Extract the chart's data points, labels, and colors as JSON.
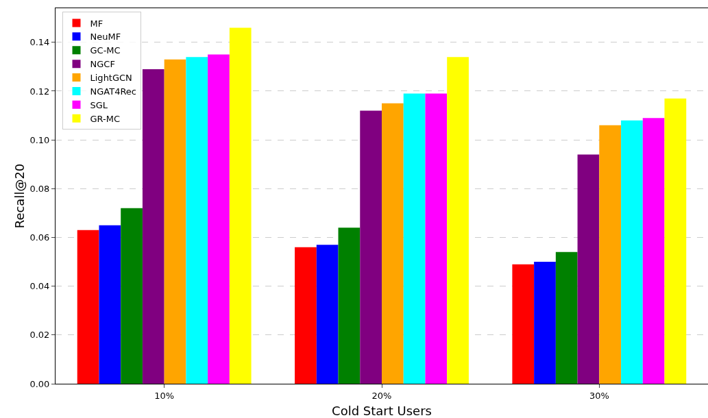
{
  "chart_data": {
    "type": "bar",
    "xlabel": "Cold Start Users",
    "ylabel": "Recall@20",
    "categories": [
      "10%",
      "20%",
      "30%"
    ],
    "series": [
      {
        "name": "MF",
        "color": "#ff0000",
        "values": [
          0.063,
          0.056,
          0.049
        ]
      },
      {
        "name": "NeuMF",
        "color": "#0000ff",
        "values": [
          0.065,
          0.057,
          0.05
        ]
      },
      {
        "name": "GC-MC",
        "color": "#008000",
        "values": [
          0.072,
          0.064,
          0.054
        ]
      },
      {
        "name": "NGCF",
        "color": "#800080",
        "values": [
          0.129,
          0.112,
          0.094
        ]
      },
      {
        "name": "LightGCN",
        "color": "#ffa500",
        "values": [
          0.133,
          0.115,
          0.106
        ]
      },
      {
        "name": "NGAT4Rec",
        "color": "#00ffff",
        "values": [
          0.134,
          0.119,
          0.108
        ]
      },
      {
        "name": "SGL",
        "color": "#ff00ff",
        "values": [
          0.135,
          0.119,
          0.109
        ]
      },
      {
        "name": "GR-MC",
        "color": "#ffff00",
        "values": [
          0.146,
          0.134,
          0.117
        ]
      }
    ],
    "ylim": [
      0,
      0.154
    ],
    "yticks": [
      {
        "value": 0,
        "label": "0.00"
      },
      {
        "value": 0.02,
        "label": "0.02"
      },
      {
        "value": 0.04,
        "label": "0.04"
      },
      {
        "value": 0.06,
        "label": "0.06"
      },
      {
        "value": 0.08,
        "label": "0.08"
      },
      {
        "value": 0.1,
        "label": "0.10"
      },
      {
        "value": 0.12,
        "label": "0.12"
      },
      {
        "value": 0.14,
        "label": "0.14"
      }
    ],
    "grid": "y",
    "legend": "top left"
  }
}
